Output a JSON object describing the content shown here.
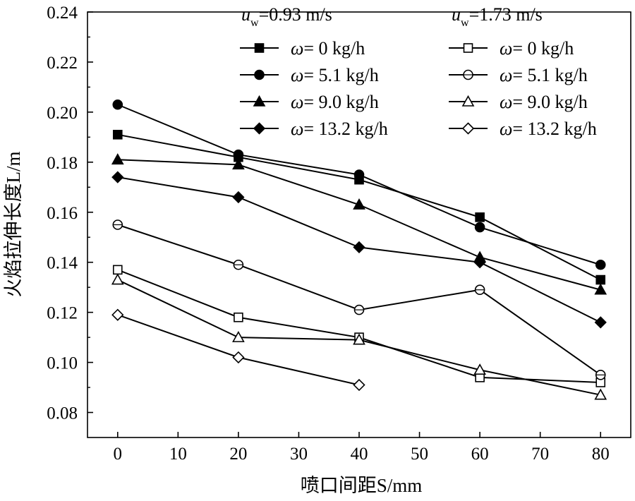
{
  "chart_data": {
    "type": "line",
    "xlabel": "喷口间距S/mm",
    "ylabel": "火焰拉伸长度L/m",
    "xlim": [
      -5,
      85
    ],
    "ylim": [
      0.07,
      0.24
    ],
    "xticks": [
      "0",
      "10",
      "20",
      "30",
      "40",
      "50",
      "60",
      "70",
      "80"
    ],
    "yticks": [
      "0.08",
      "0.10",
      "0.12",
      "0.14",
      "0.16",
      "0.18",
      "0.20",
      "0.22",
      "0.24"
    ],
    "grid": false,
    "legend_placement": "top-right",
    "legend_groups": [
      {
        "var": "u",
        "sub": "w",
        "value": "=0.93 m/s"
      },
      {
        "var": "u",
        "sub": "w",
        "value": "=1.73 m/s"
      }
    ],
    "series": [
      {
        "var": "ω",
        "name": "= 0 kg/h",
        "marker": "square",
        "filled": true,
        "color": "#000000",
        "x": [
          0,
          20,
          40,
          60,
          80
        ],
        "y": [
          0.191,
          0.182,
          0.173,
          0.158,
          0.133
        ]
      },
      {
        "var": "ω",
        "name": "= 5.1 kg/h",
        "marker": "circle",
        "filled": true,
        "color": "#000000",
        "x": [
          0,
          20,
          40,
          60,
          80
        ],
        "y": [
          0.203,
          0.183,
          0.175,
          0.154,
          0.139
        ]
      },
      {
        "var": "ω",
        "name": "= 9.0 kg/h",
        "marker": "triangle",
        "filled": true,
        "color": "#000000",
        "x": [
          0,
          20,
          40,
          60,
          80
        ],
        "y": [
          0.181,
          0.179,
          0.163,
          0.142,
          0.129
        ]
      },
      {
        "var": "ω",
        "name": "= 13.2 kg/h",
        "marker": "diamond",
        "filled": true,
        "color": "#000000",
        "x": [
          0,
          20,
          40,
          60,
          80
        ],
        "y": [
          0.174,
          0.166,
          0.146,
          0.14,
          0.116
        ]
      },
      {
        "var": "ω",
        "name": "= 0 kg/h",
        "marker": "square",
        "filled": false,
        "color": "#000000",
        "x": [
          0,
          20,
          40,
          60,
          80
        ],
        "y": [
          0.137,
          0.118,
          0.11,
          0.094,
          0.092
        ]
      },
      {
        "var": "ω",
        "name": "= 5.1 kg/h",
        "marker": "circle",
        "filled": false,
        "color": "#000000",
        "x": [
          0,
          20,
          40,
          60,
          80
        ],
        "y": [
          0.155,
          0.139,
          0.121,
          0.129,
          0.095
        ]
      },
      {
        "var": "ω",
        "name": "= 9.0 kg/h",
        "marker": "triangle",
        "filled": false,
        "color": "#000000",
        "x": [
          0,
          20,
          40,
          60,
          80
        ],
        "y": [
          0.133,
          0.11,
          0.109,
          0.097,
          0.087
        ]
      },
      {
        "var": "ω",
        "name": "= 13.2 kg/h",
        "marker": "diamond",
        "filled": false,
        "color": "#000000",
        "x": [
          0,
          20,
          40
        ],
        "y": [
          0.119,
          0.102,
          0.091
        ]
      }
    ]
  }
}
